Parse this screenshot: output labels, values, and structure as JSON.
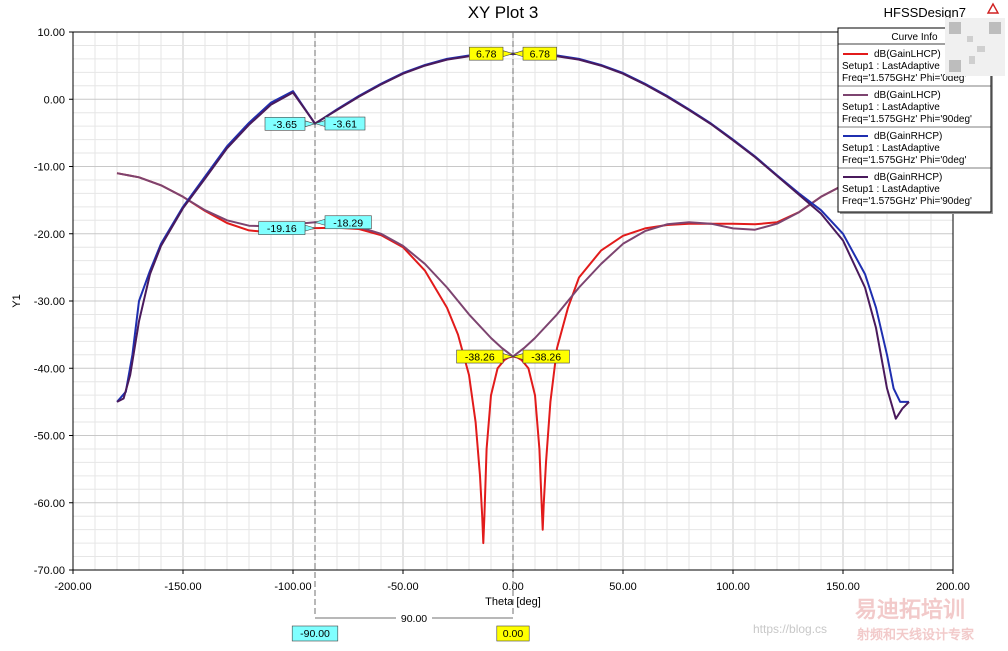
{
  "app": {
    "design_name": "HFSSDesign7"
  },
  "chart_data": {
    "type": "line",
    "title": "XY Plot 3",
    "xlabel": "Theta [deg]",
    "ylabel": "Y1",
    "xlim": [
      -200,
      200
    ],
    "ylim": [
      -70,
      10
    ],
    "x_ticks": [
      "-200.00",
      "-150.00",
      "-100.00",
      "-50.00",
      "0.00",
      "50.00",
      "100.00",
      "150.00",
      "200.00"
    ],
    "y_ticks": [
      "10.00",
      "0.00",
      "-10.00",
      "-20.00",
      "-30.00",
      "-40.00",
      "-50.00",
      "-60.00",
      "-70.00"
    ],
    "legend": {
      "title": "Curve Info",
      "position": "top-right",
      "entries": [
        {
          "name": "dB(GainLHCP)",
          "line1": "Setup1 : LastAdaptive",
          "line2": "Freq='1.575GHz' Phi='0deg'",
          "color": "#e21b1b"
        },
        {
          "name": "dB(GainLHCP)",
          "line1": "Setup1 : LastAdaptive",
          "line2": "Freq='1.575GHz' Phi='90deg'",
          "color": "#7d4470"
        },
        {
          "name": "dB(GainRHCP)",
          "line1": "Setup1 : LastAdaptive",
          "line2": "Freq='1.575GHz' Phi='0deg'",
          "color": "#1f2fb0"
        },
        {
          "name": "dB(GainRHCP)",
          "line1": "Setup1 : LastAdaptive",
          "line2": "Freq='1.575GHz' Phi='90deg'",
          "color": "#4a1a5c"
        }
      ]
    },
    "series": [
      {
        "name": "dB(GainLHCP) Phi='0deg'",
        "color": "#e21b1b",
        "x": [
          -180,
          -170,
          -160,
          -150,
          -140,
          -130,
          -120,
          -110,
          -100,
          -90,
          -80,
          -70,
          -60,
          -50,
          -40,
          -30,
          -25,
          -20,
          -17,
          -15,
          -14,
          -13.5,
          -13,
          -12,
          -10,
          -7,
          -4,
          -2,
          0,
          2,
          4,
          7,
          10,
          12,
          13,
          13.5,
          14,
          15,
          17,
          20,
          25,
          30,
          40,
          50,
          60,
          70,
          80,
          90,
          100,
          110,
          120,
          130,
          140,
          150,
          160,
          170,
          180
        ],
        "y": [
          -11,
          -11.6,
          -12.8,
          -14.5,
          -16.6,
          -18.4,
          -19.5,
          -19.8,
          -19.5,
          -19.16,
          -19.1,
          -19.3,
          -20.2,
          -22,
          -25.5,
          -31,
          -35,
          -41,
          -48,
          -56,
          -62,
          -66,
          -62,
          -52,
          -44,
          -40,
          -38.8,
          -38.4,
          -38.26,
          -38.4,
          -38.8,
          -40,
          -44,
          -52,
          -60,
          -64,
          -60,
          -54,
          -45,
          -37,
          -31,
          -26.5,
          -22.5,
          -20.3,
          -19.2,
          -18.7,
          -18.5,
          -18.5,
          -18.5,
          -18.6,
          -18.3,
          -16.8,
          -14.5,
          -12.8,
          -11.6,
          -11,
          -11
        ]
      },
      {
        "name": "dB(GainLHCP) Phi='90deg'",
        "color": "#7d4470",
        "x": [
          -180,
          -170,
          -160,
          -150,
          -140,
          -130,
          -120,
          -110,
          -100,
          -90,
          -80,
          -70,
          -60,
          -50,
          -40,
          -30,
          -20,
          -10,
          -5,
          0,
          5,
          10,
          20,
          30,
          40,
          50,
          60,
          70,
          80,
          90,
          100,
          110,
          120,
          130,
          140,
          150,
          160,
          170,
          180
        ],
        "y": [
          -11,
          -11.6,
          -12.8,
          -14.5,
          -16.5,
          -18,
          -18.8,
          -18.9,
          -18.6,
          -18.29,
          -18.4,
          -19,
          -20,
          -21.8,
          -24.5,
          -28,
          -32,
          -35.5,
          -37,
          -38.26,
          -37,
          -35.5,
          -32,
          -28,
          -24.5,
          -21.5,
          -19.6,
          -18.6,
          -18.3,
          -18.5,
          -19.2,
          -19.4,
          -18.5,
          -16.8,
          -14.5,
          -12.8,
          -11.6,
          -11,
          -11
        ]
      },
      {
        "name": "dB(GainRHCP) Phi='0deg'",
        "color": "#1f2fb0",
        "x": [
          -180,
          -176,
          -173,
          -170,
          -165,
          -160,
          -150,
          -140,
          -130,
          -120,
          -110,
          -100,
          -90,
          -80,
          -70,
          -60,
          -50,
          -40,
          -30,
          -20,
          -10,
          0,
          10,
          20,
          30,
          40,
          50,
          60,
          70,
          80,
          90,
          100,
          110,
          120,
          130,
          140,
          150,
          160,
          165,
          170,
          173,
          176,
          180
        ],
        "y": [
          -45,
          -43.5,
          -38,
          -30,
          -25.5,
          -21.5,
          -16,
          -11.5,
          -7,
          -3.5,
          -0.5,
          1.2,
          -3.65,
          -1.5,
          0.5,
          2.3,
          3.9,
          5.1,
          6,
          6.5,
          6.7,
          6.78,
          6.7,
          6.5,
          6,
          5.1,
          3.9,
          2.3,
          0.5,
          -1.5,
          -3.6,
          -6,
          -8.5,
          -11.3,
          -14,
          -16.5,
          -20,
          -26,
          -31,
          -38,
          -43,
          -45,
          -45
        ]
      },
      {
        "name": "dB(GainRHCP) Phi='90deg'",
        "color": "#4a1a5c",
        "x": [
          -180,
          -177,
          -174,
          -170,
          -165,
          -160,
          -150,
          -140,
          -130,
          -120,
          -110,
          -100,
          -90,
          -80,
          -70,
          -60,
          -50,
          -40,
          -30,
          -20,
          -10,
          0,
          10,
          20,
          30,
          40,
          50,
          60,
          70,
          80,
          90,
          100,
          110,
          120,
          130,
          140,
          150,
          160,
          165,
          170,
          174,
          177,
          180
        ],
        "y": [
          -45,
          -44.5,
          -41,
          -33,
          -26,
          -21.8,
          -16.2,
          -11.8,
          -7.3,
          -3.8,
          -0.8,
          1,
          -3.61,
          -1.6,
          0.4,
          2.2,
          3.8,
          5,
          5.9,
          6.4,
          6.7,
          6.78,
          6.7,
          6.4,
          5.9,
          5,
          3.8,
          2.2,
          0.4,
          -1.6,
          -3.7,
          -6.1,
          -8.6,
          -11.4,
          -14.2,
          -17,
          -21,
          -28,
          -34,
          -43,
          -47.5,
          -46,
          -45
        ]
      }
    ],
    "markers": [
      {
        "text": "6.78",
        "x": 0,
        "y": 6.78,
        "side": "left",
        "bg": "#ffff00"
      },
      {
        "text": "6.78",
        "x": 0,
        "y": 6.78,
        "side": "right",
        "bg": "#ffff00"
      },
      {
        "text": "-38.26",
        "x": 0,
        "y": -38.26,
        "side": "left",
        "bg": "#ffff00"
      },
      {
        "text": "-38.26",
        "x": 0,
        "y": -38.26,
        "side": "right",
        "bg": "#ffff00"
      },
      {
        "text": "-3.65",
        "x": -90,
        "y": -3.65,
        "side": "left",
        "bg": "#80ffff"
      },
      {
        "text": "-3.61",
        "x": -90,
        "y": -3.61,
        "side": "right",
        "bg": "#80ffff"
      },
      {
        "text": "-19.16",
        "x": -90,
        "y": -19.16,
        "side": "left",
        "bg": "#80ffff"
      },
      {
        "text": "-18.29",
        "x": -90,
        "y": -18.29,
        "side": "right",
        "bg": "#80ffff"
      }
    ],
    "vlines": [
      {
        "x": -90,
        "label": "-90.00",
        "bg": "#80ffff"
      },
      {
        "x": 0,
        "label": "0.00",
        "bg": "#ffff00"
      }
    ],
    "delta_label": "90.00"
  },
  "watermark": {
    "brand": "易迪拓培训",
    "subtitle": "射频和天线设计专家",
    "url": "https://blog.cs"
  }
}
